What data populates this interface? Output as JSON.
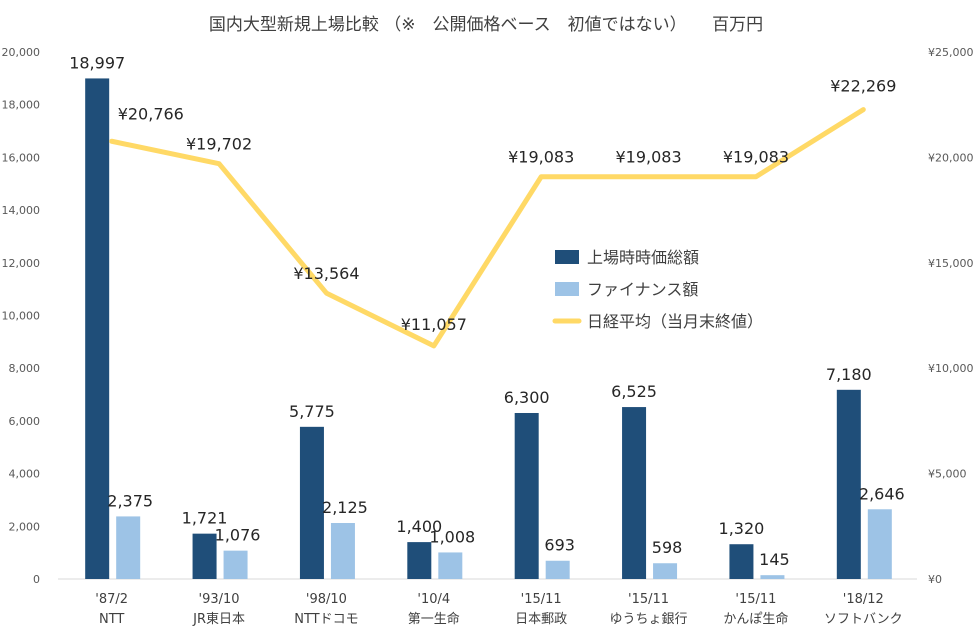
{
  "chart_data": {
    "type": "bar+line",
    "title": "国内大型新規上場比較 （※　公開価格ベース　初値ではない）　　百万円",
    "categories": [
      {
        "period": "'87/2",
        "name": "NTT"
      },
      {
        "period": "'93/10",
        "name": "JR東日本"
      },
      {
        "period": "'98/10",
        "name": "NTTドコモ"
      },
      {
        "period": "'10/4",
        "name": "第一生命"
      },
      {
        "period": "'15/11",
        "name": "日本郵政"
      },
      {
        "period": "'15/11",
        "name": "ゆうちょ銀行"
      },
      {
        "period": "'15/11",
        "name": "かんぽ生命"
      },
      {
        "period": "'18/12",
        "name": "ソフトバンク"
      }
    ],
    "series": [
      {
        "name": "上場時時価総額",
        "axis": "left",
        "color": "#1f4e79",
        "values": [
          18997,
          1721,
          5775,
          1400,
          6300,
          6525,
          1320,
          7180
        ],
        "labels": [
          "18,997",
          "1,721",
          "5,775",
          "1,400",
          "6,300",
          "6,525",
          "1,320",
          "7,180"
        ]
      },
      {
        "name": "ファイナンス額",
        "axis": "left",
        "color": "#9dc3e6",
        "values": [
          2375,
          1076,
          2125,
          1008,
          693,
          598,
          145,
          2646
        ],
        "labels": [
          "2,375",
          "1,076",
          "2,125",
          "1,008",
          "693",
          "598",
          "145",
          "2,646"
        ]
      },
      {
        "name": "日経平均（当月末終値）",
        "axis": "right",
        "color": "#ffd966",
        "values": [
          20766,
          19702,
          13564,
          11057,
          19083,
          19083,
          19083,
          22269
        ],
        "labels": [
          "¥20,766",
          "¥19,702",
          "¥13,564",
          "¥11,057",
          "¥19,083",
          "¥19,083",
          "¥19,083",
          "¥22,269"
        ]
      }
    ],
    "y_left": {
      "min": 0,
      "max": 20000,
      "ticks": [
        0,
        2000,
        4000,
        6000,
        8000,
        10000,
        12000,
        14000,
        16000,
        18000,
        20000
      ],
      "tick_labels": [
        "0",
        "2,000",
        "4,000",
        "6,000",
        "8,000",
        "10,000",
        "12,000",
        "14,000",
        "16,000",
        "18,000",
        "20,000"
      ]
    },
    "y_right": {
      "min": 0,
      "max": 25000,
      "ticks": [
        0,
        5000,
        10000,
        15000,
        20000,
        25000
      ],
      "tick_labels": [
        "¥0",
        "¥5,000",
        "¥10,000",
        "¥15,000",
        "¥20,000",
        "¥25,000"
      ]
    },
    "grid": false,
    "legend_position": "center-right"
  }
}
